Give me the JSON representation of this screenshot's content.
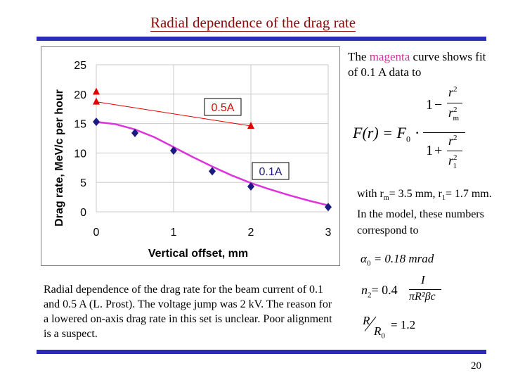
{
  "slide": {
    "title": "Radial dependence of the drag rate",
    "page_number": "20",
    "accent_color": "#2b2bb5",
    "title_color": "#8b0a0a"
  },
  "side": {
    "line1_a": "The ",
    "line1_mag": "magenta",
    "line1_b": " curve shows fit of 0.1 A data to",
    "with_text": "with r",
    "with_sub_m": "m",
    "with_text2": "= 3.5 mm, r",
    "with_sub_1": "1",
    "with_text3": "= 1.7 mm. In the model, these numbers correspond to"
  },
  "equations": {
    "F_lhs": "F(r) = F",
    "F_sub": "0",
    "F_dot": "·",
    "one": "1",
    "minus": "−",
    "plus": "+",
    "r2": "r",
    "sup2": "2",
    "rm": "r",
    "rm_sub": "m",
    "r1": "r",
    "r1_sub": "1",
    "alpha": "α",
    "alpha_sub": "0",
    "alpha_rhs": "= 0.18 mrad",
    "n2": "n",
    "n2_sub": "2",
    "n2_eq": "= 0.4",
    "n2_num": "I",
    "n2_den": "πR²βc",
    "R_ratio": "R",
    "R0": "R",
    "R0_sub": "0",
    "R_rhs": "= 1.2"
  },
  "caption": "Radial dependence of the drag rate for the beam current of 0.1 and 0.5 A (L. Prost). The voltage jump was 2 kV. The reason for a lowered on-axis drag rate in this set is unclear. Poor alignment is a suspect.",
  "chart_data": {
    "type": "scatter",
    "xlabel": "Vertical offset, mm",
    "ylabel": "Drag rate, MeV/c per hour",
    "xlim": [
      0,
      3
    ],
    "ylim": [
      0,
      25
    ],
    "x_ticks": [
      "0",
      "1",
      "2",
      "3"
    ],
    "y_ticks": [
      "0",
      "5",
      "10",
      "15",
      "20",
      "25"
    ],
    "grid": true,
    "series": [
      {
        "name": "0.5A",
        "marker": "triangle",
        "color": "#e00000",
        "points": [
          [
            0,
            20.4
          ],
          [
            0,
            18.7
          ],
          [
            2,
            14.6
          ]
        ],
        "line": [
          [
            0,
            18.7
          ],
          [
            2,
            14.6
          ]
        ]
      },
      {
        "name": "0.1A",
        "marker": "diamond",
        "color": "#1a1a80",
        "points": [
          [
            0,
            15.3
          ],
          [
            0.5,
            13.4
          ],
          [
            1,
            10.4
          ],
          [
            1.5,
            6.9
          ],
          [
            2,
            4.3
          ],
          [
            3,
            0.8
          ]
        ]
      }
    ],
    "fit": {
      "color": "#dd33dd",
      "points": [
        [
          0,
          15.3
        ],
        [
          0.25,
          14.9
        ],
        [
          0.5,
          14.0
        ],
        [
          0.75,
          12.7
        ],
        [
          1,
          11.0
        ],
        [
          1.25,
          9.3
        ],
        [
          1.5,
          7.7
        ],
        [
          1.75,
          6.2
        ],
        [
          2,
          4.9
        ],
        [
          2.25,
          3.8
        ],
        [
          2.5,
          2.8
        ],
        [
          2.75,
          1.9
        ],
        [
          3,
          1.1
        ]
      ]
    }
  }
}
